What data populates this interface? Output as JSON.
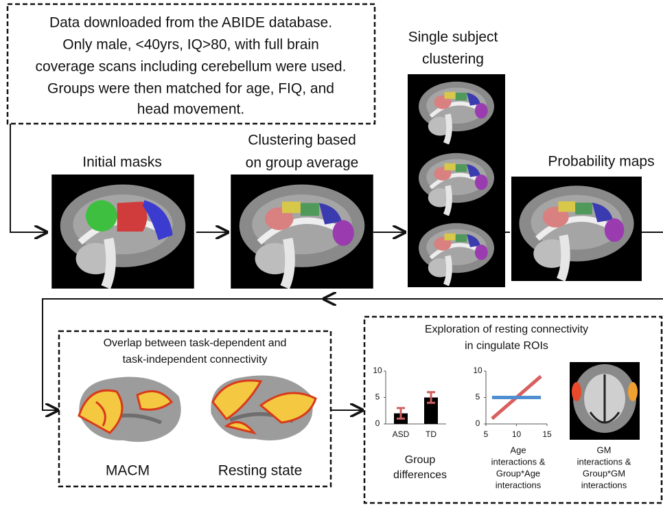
{
  "header_box": {
    "lines": [
      "Data downloaded from the ABIDE database.",
      "Only male, <40yrs, IQ>80, with full brain",
      "coverage scans including cerebellum were used.",
      "Groups were then matched for age, FIQ, and",
      "head movement."
    ]
  },
  "steps": [
    {
      "label": [
        "Initial masks"
      ]
    },
    {
      "label": [
        "Clustering based",
        "on group average"
      ]
    },
    {
      "label": [
        "Single subject",
        "clustering"
      ]
    },
    {
      "label": [
        "Probability maps"
      ]
    }
  ],
  "overlap": {
    "title": [
      "Overlap between task-dependent and",
      "task-independent connectivity"
    ],
    "labels": [
      "MACM",
      "Resting state"
    ]
  },
  "exploration": {
    "title": [
      "Exploration of resting connectivity",
      "in cingulate ROIs"
    ],
    "bar_chart": {
      "categories": [
        "ASD",
        "TD"
      ],
      "values": [
        2,
        5
      ],
      "errors": [
        1,
        1
      ],
      "color": "#000000",
      "error_color": "#d06060",
      "ylim": [
        0,
        10
      ],
      "yticks": [
        0,
        5,
        10
      ],
      "caption": [
        "Group",
        "differences"
      ]
    },
    "line_chart": {
      "x": [
        6,
        14
      ],
      "series": [
        {
          "color": "#d95f5f",
          "values": [
            1,
            9
          ]
        },
        {
          "color": "#4f8fd0",
          "values": [
            5,
            5
          ]
        }
      ],
      "xlim": [
        5,
        15
      ],
      "xticks": [
        5,
        10,
        15
      ],
      "ylim": [
        0,
        10
      ],
      "yticks": [
        0,
        5,
        10
      ],
      "caption": [
        "Age",
        "interactions &",
        "Group*Age",
        "interactions"
      ]
    },
    "gm_caption": [
      "GM",
      "interactions &",
      "Group*GM",
      "interactions"
    ]
  }
}
